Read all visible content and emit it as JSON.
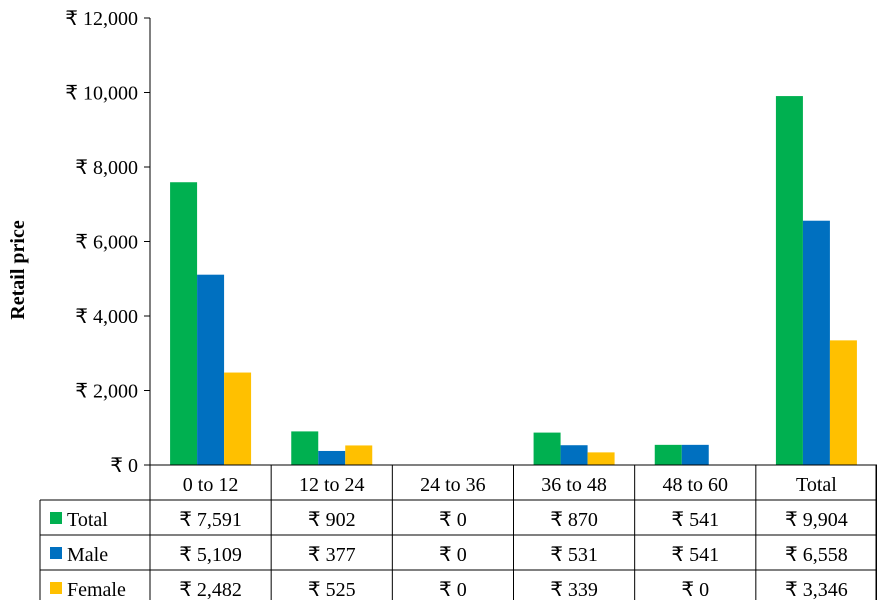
{
  "chart_data": {
    "type": "bar",
    "title": "",
    "xlabel": "",
    "ylabel": "Retail price",
    "ylim": [
      0,
      12000
    ],
    "y_ticks": [
      0,
      2000,
      4000,
      6000,
      8000,
      10000,
      12000
    ],
    "y_tick_labels": [
      "₹ 0",
      "₹ 2,000",
      "₹ 4,000",
      "₹ 6,000",
      "₹ 8,000",
      "₹ 10,000",
      "₹ 12,000"
    ],
    "grid": false,
    "legend": "data-table",
    "categories": [
      "0 to 12",
      "12 to 24",
      "24 to 36",
      "36 to 48",
      "48 to 60",
      "Total"
    ],
    "series": [
      {
        "name": "Total",
        "color": "#00b050",
        "values": [
          7591,
          902,
          0,
          870,
          541,
          9904
        ],
        "labels": [
          "₹ 7,591",
          "₹ 902",
          "₹ 0",
          "₹ 870",
          "₹ 541",
          "₹ 9,904"
        ]
      },
      {
        "name": "Male",
        "color": "#0070c0",
        "values": [
          5109,
          377,
          0,
          531,
          541,
          6558
        ],
        "labels": [
          "₹ 5,109",
          "₹ 377",
          "₹ 0",
          "₹ 531",
          "₹ 541",
          "₹ 6,558"
        ]
      },
      {
        "name": "Female",
        "color": "#ffc000",
        "values": [
          2482,
          525,
          0,
          339,
          0,
          3346
        ],
        "labels": [
          "₹ 2,482",
          "₹ 525",
          "₹ 0",
          "₹ 339",
          "₹ 0",
          "₹ 3,346"
        ]
      }
    ]
  }
}
